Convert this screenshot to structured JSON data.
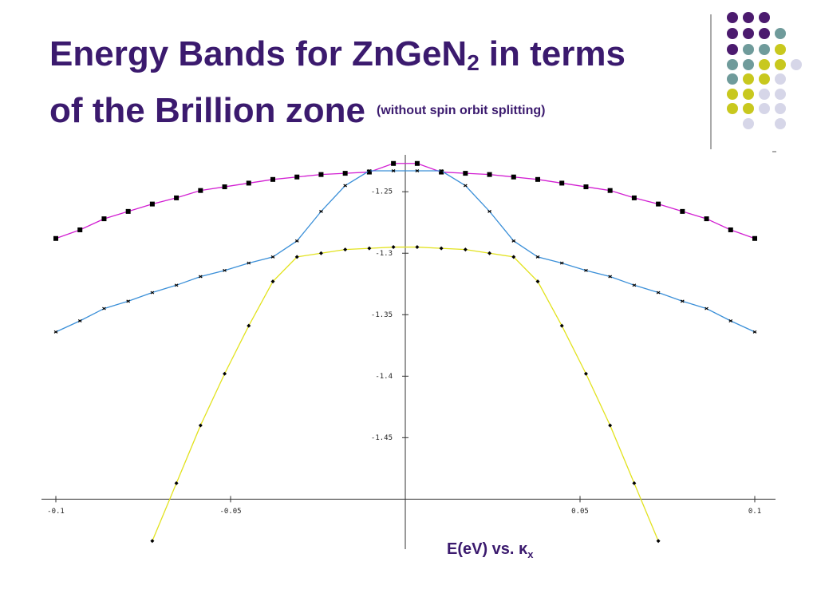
{
  "header": {
    "title_line1": "Energy Bands for ZnGeN",
    "title_sub": "2",
    "title_line1_end": "in terms",
    "title_line2": "of the Brillion zone",
    "subtitle": "(without spin orbit splitting)"
  },
  "chart_data": {
    "type": "line",
    "caption": "E(eV) vs. κ",
    "caption_sub": "x",
    "x": [
      -0.1,
      -0.0931,
      -0.0862,
      -0.0793,
      -0.0724,
      -0.0655,
      -0.0586,
      -0.0517,
      -0.0448,
      -0.0379,
      -0.031,
      -0.0241,
      -0.0172,
      -0.0103,
      -0.0034,
      0.0034,
      0.0103,
      0.0172,
      0.0241,
      0.031,
      0.0379,
      0.0448,
      0.0517,
      0.0586,
      0.0655,
      0.0724,
      0.0793,
      0.0862,
      0.0931,
      0.1
    ],
    "series": [
      {
        "color": "#d21fd2",
        "marker": "square",
        "values": [
          -1.288,
          -1.281,
          -1.272,
          -1.266,
          -1.26,
          -1.255,
          -1.249,
          -1.246,
          -1.243,
          -1.24,
          -1.238,
          -1.236,
          -1.235,
          -1.234,
          -1.227,
          -1.227,
          -1.234,
          -1.235,
          -1.236,
          -1.238,
          -1.24,
          -1.243,
          -1.246,
          -1.249,
          -1.255,
          -1.26,
          -1.266,
          -1.272,
          -1.281,
          -1.288
        ]
      },
      {
        "color": "#3a8fd8",
        "marker": "cross",
        "values": [
          -1.364,
          -1.355,
          -1.345,
          -1.339,
          -1.332,
          -1.326,
          -1.319,
          -1.314,
          -1.308,
          -1.303,
          -1.29,
          -1.266,
          -1.245,
          -1.233,
          -1.233,
          -1.233,
          -1.233,
          -1.245,
          -1.266,
          -1.29,
          -1.303,
          -1.308,
          -1.314,
          -1.319,
          -1.326,
          -1.332,
          -1.339,
          -1.345,
          -1.355,
          -1.364
        ]
      },
      {
        "color": "#e2e21e",
        "marker": "diamond",
        "values": [
          null,
          null,
          null,
          null,
          -1.534,
          -1.487,
          -1.44,
          -1.398,
          -1.359,
          -1.323,
          -1.303,
          -1.3,
          -1.297,
          -1.296,
          -1.295,
          -1.295,
          -1.296,
          -1.297,
          -1.3,
          -1.303,
          -1.323,
          -1.359,
          -1.398,
          -1.44,
          -1.487,
          -1.534,
          null,
          null,
          null,
          null
        ]
      }
    ],
    "xlim": [
      -0.1,
      0.1
    ],
    "xticks": [
      -0.1,
      -0.05,
      0.05,
      0.1
    ],
    "ylim": [
      -1.54,
      -1.22
    ],
    "yticks": [
      -1.25,
      -1.3,
      -1.35,
      -1.4,
      -1.45
    ],
    "axis_origin": [
      0,
      -1.5
    ],
    "grid": false
  }
}
